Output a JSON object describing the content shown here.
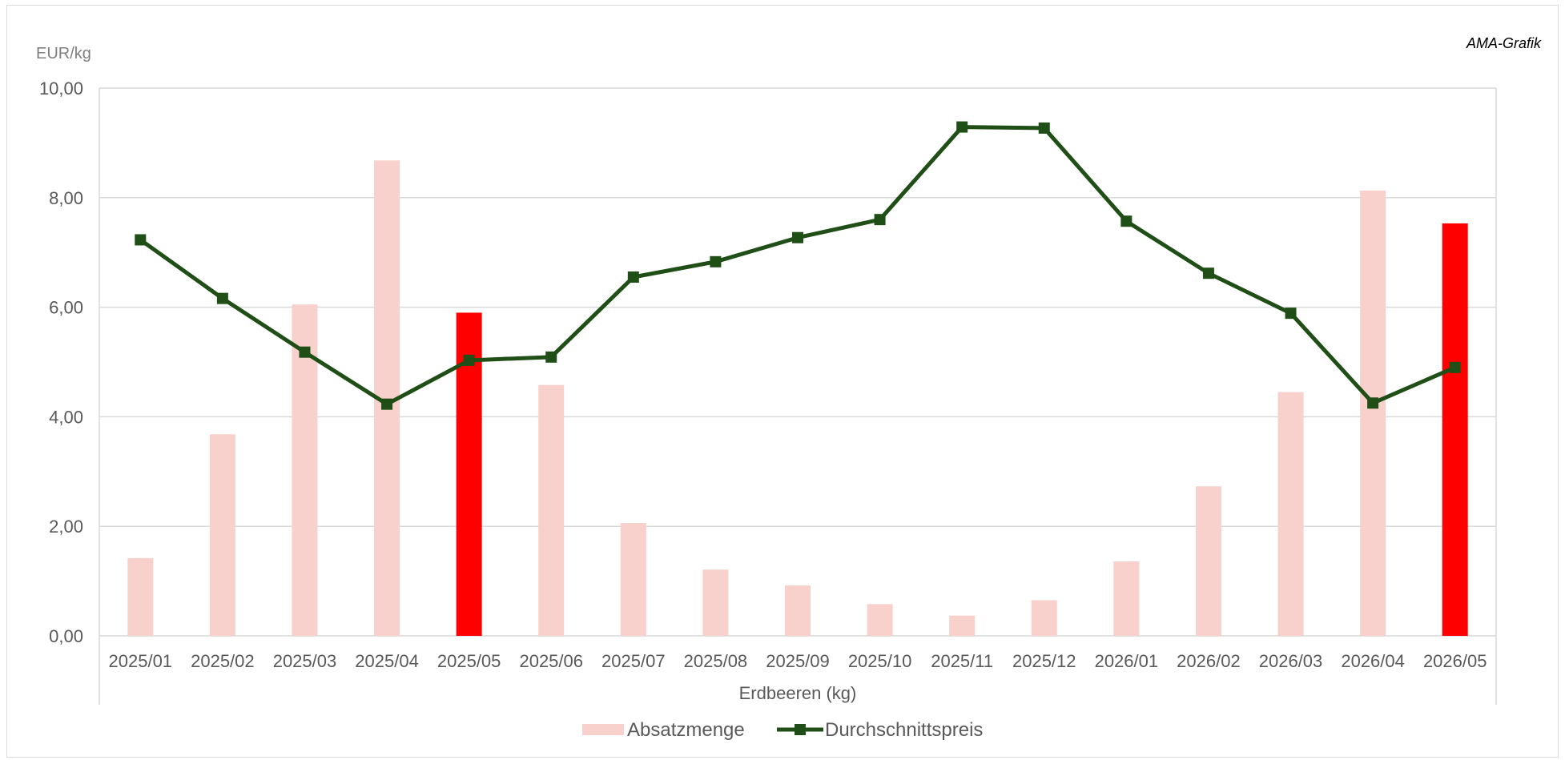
{
  "credit": "AMA-Grafik",
  "chart_data": {
    "type": "bar",
    "y_unit_label": "EUR/kg",
    "xlabel": "Erdbeeren (kg)",
    "ylim": [
      0,
      10
    ],
    "y_ticks": [
      "0,00",
      "2,00",
      "4,00",
      "6,00",
      "8,00",
      "10,00"
    ],
    "grid": true,
    "legend_position": "bottom",
    "categories": [
      "2025/01",
      "2025/02",
      "2025/03",
      "2025/04",
      "2025/05",
      "2025/06",
      "2025/07",
      "2025/08",
      "2025/09",
      "2025/10",
      "2025/11",
      "2025/12",
      "2026/01",
      "2026/02",
      "2026/03",
      "2026/04",
      "2026/05"
    ],
    "series": [
      {
        "name": "Absatzmenge",
        "type": "bar",
        "color": "#f8d0cc",
        "highlight_color": "#ff0000",
        "highlight_categories": [
          "2025/05",
          "2026/05"
        ],
        "values": [
          1.42,
          3.68,
          6.05,
          8.68,
          5.9,
          4.58,
          2.06,
          1.21,
          0.92,
          0.58,
          0.37,
          0.65,
          1.36,
          2.73,
          4.45,
          8.13,
          7.53
        ]
      },
      {
        "name": "Durchschnittspreis",
        "type": "line",
        "color": "#1f4e16",
        "marker": "square",
        "values": [
          7.23,
          6.16,
          5.18,
          4.23,
          5.03,
          5.09,
          6.55,
          6.83,
          7.27,
          7.6,
          9.29,
          9.27,
          7.57,
          6.62,
          5.89,
          4.25,
          4.9
        ]
      }
    ]
  }
}
